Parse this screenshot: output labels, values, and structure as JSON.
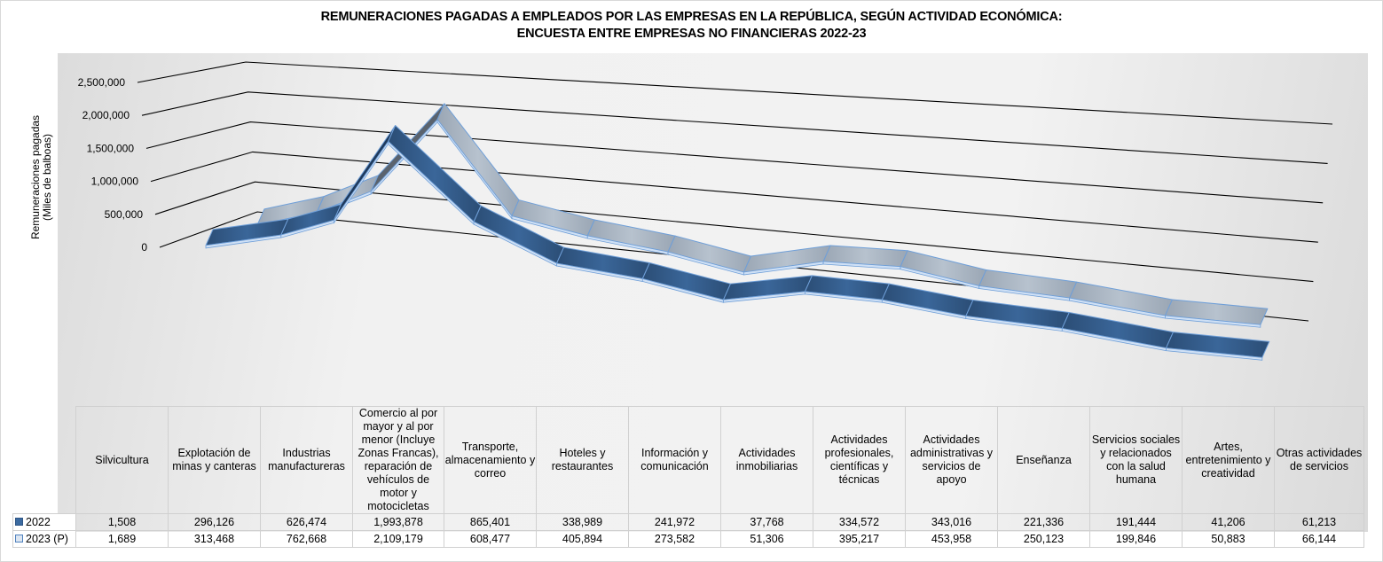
{
  "chart_data": {
    "type": "line",
    "style": "3d-ribbon",
    "title": "REMUNERACIONES PAGADAS A EMPLEADOS POR LAS EMPRESAS EN LA REPÚBLICA, SEGÚN ACTIVIDAD ECONÓMICA:",
    "subtitle": "ENCUESTA ENTRE EMPRESAS NO FINANCIERAS 2022-23",
    "ylabel_line1": "Remuneraciones  pagadas",
    "ylabel_line2": "(Miles de balboas)",
    "xlabel": "",
    "ylim": [
      0,
      2500000
    ],
    "yticks": [
      {
        "value": 0,
        "label": "0"
      },
      {
        "value": 500000,
        "label": "500,000"
      },
      {
        "value": 1000000,
        "label": "1,000,000"
      },
      {
        "value": 1500000,
        "label": "1,500,000"
      },
      {
        "value": 2000000,
        "label": "2,000,000"
      },
      {
        "value": 2500000,
        "label": "2,500,000"
      }
    ],
    "grid": true,
    "legend_placement": "data-table",
    "categories": [
      "Silvicultura",
      "Explotación de minas y canteras",
      "Industrias manufactureras",
      "Comercio al por mayor y al por menor (Incluye Zonas Francas), reparación de vehículos de motor y motocicletas",
      "Transporte, almacenamiento y correo",
      "Hoteles y restaurantes",
      "Información y comunicación",
      "Actividades inmobiliarias",
      "Actividades profesionales, científicas y técnicas",
      "Actividades administrativas y servicios de apoyo",
      "Enseñanza",
      "Servicios sociales y relacionados con la salud humana",
      "Artes, entretenimiento y creatividad",
      "Otras actividades de servicios"
    ],
    "series": [
      {
        "name": "2022",
        "color": "#35608f",
        "values": [
          1508,
          296126,
          626474,
          1993878,
          865401,
          338989,
          241972,
          37768,
          334572,
          343016,
          221336,
          191444,
          41206,
          61213
        ],
        "labels": [
          "1,508",
          "296,126",
          "626,474",
          "1,993,878",
          "865,401",
          "338,989",
          "241,972",
          "37,768",
          "334,572",
          "343,016",
          "221,336",
          "191,444",
          "41,206",
          "61,213"
        ]
      },
      {
        "name": "2023 (P)",
        "color": "#a9b6c5",
        "values": [
          1689,
          313468,
          762668,
          2109179,
          608477,
          405894,
          273582,
          51306,
          395217,
          453958,
          250123,
          199846,
          50883,
          66144
        ],
        "labels": [
          "1,689",
          "313,468",
          "762,668",
          "2,109,179",
          "608,477",
          "405,894",
          "273,582",
          "51,306",
          "395,217",
          "453,958",
          "250,123",
          "199,846",
          "50,883",
          "66,144"
        ]
      }
    ]
  },
  "colors": {
    "series_2022": "#35608f",
    "series_2022_dark": "#1f3a5c",
    "series_2023": "#a9b6c5",
    "series_2023_dark": "#5a636e",
    "ribbon_edge": "#6f9fd8",
    "gridline": "#000000"
  }
}
